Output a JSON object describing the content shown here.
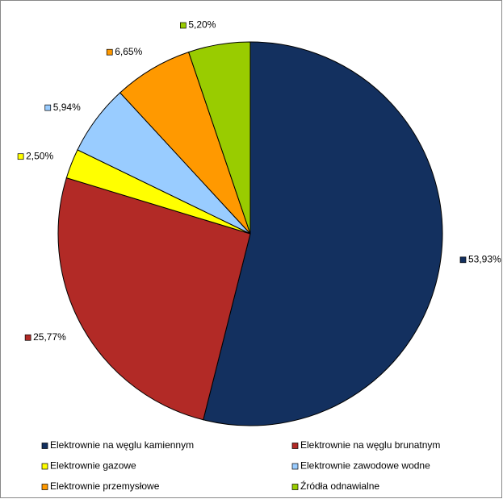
{
  "chart_data": {
    "type": "pie",
    "categories": [
      "Elektrownie na węglu kamiennym",
      "Elektrownie na węglu brunatnym",
      "Elektrownie gazowe",
      "Elektrownie zawodowe wodne",
      "Elektrownie przemysłowe",
      "Źródła odnawialne"
    ],
    "values": [
      53.93,
      25.77,
      2.5,
      5.94,
      6.65,
      5.2
    ],
    "value_labels": [
      "53,93%",
      "25,77%",
      "2,50%",
      "5,94%",
      "6,65%",
      "5,20%"
    ],
    "colors": [
      "#13305f",
      "#b22a26",
      "#ffff00",
      "#99ccff",
      "#ff9900",
      "#99cc00"
    ],
    "legend": "bottom"
  }
}
